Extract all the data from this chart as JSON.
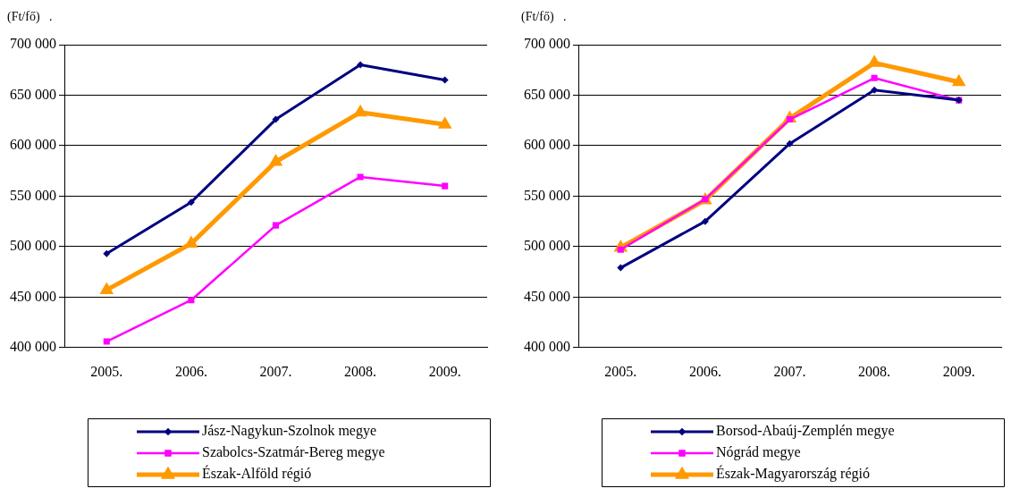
{
  "chart_data": [
    {
      "type": "line",
      "ylabel": "(Ft/fő)   .",
      "categories": [
        "2005.",
        "2006.",
        "2007.",
        "2008.",
        "2009."
      ],
      "ylim": [
        400000,
        700000
      ],
      "yticks": [
        {
          "value": 400000,
          "label": "400 000"
        },
        {
          "value": 450000,
          "label": "450 000"
        },
        {
          "value": 500000,
          "label": "500 000"
        },
        {
          "value": 550000,
          "label": "550 000"
        },
        {
          "value": 600000,
          "label": "600 000"
        },
        {
          "value": 650000,
          "label": "650 000"
        },
        {
          "value": 700000,
          "label": "700 000"
        }
      ],
      "grid": "y",
      "legend": "bottom",
      "series": [
        {
          "name": "Jász-Nagykun-Szolnok megye",
          "color": "#000080",
          "marker": "diamond",
          "values": [
            493000,
            544000,
            626000,
            680000,
            665000
          ]
        },
        {
          "name": "Szabolcs-Szatmár-Bereg megye",
          "color": "#ff00ff",
          "marker": "square",
          "values": [
            406000,
            447000,
            521000,
            569000,
            560000
          ]
        },
        {
          "name": "Észak-Alföld régió",
          "color": "#ff9900",
          "marker": "triangle",
          "values": [
            457000,
            503000,
            584000,
            633000,
            621000
          ]
        }
      ]
    },
    {
      "type": "line",
      "ylabel": "(Ft/fő)   .",
      "categories": [
        "2005.",
        "2006.",
        "2007.",
        "2008.",
        "2009."
      ],
      "ylim": [
        400000,
        700000
      ],
      "yticks": [
        {
          "value": 400000,
          "label": "400 000"
        },
        {
          "value": 450000,
          "label": "450 000"
        },
        {
          "value": 500000,
          "label": "500 000"
        },
        {
          "value": 550000,
          "label": "550 000"
        },
        {
          "value": 600000,
          "label": "600 000"
        },
        {
          "value": 650000,
          "label": "650 000"
        },
        {
          "value": 700000,
          "label": "700 000"
        }
      ],
      "grid": "y",
      "legend": "bottom",
      "series": [
        {
          "name": "Borsod-Abaúj-Zemplén megye",
          "color": "#000080",
          "marker": "diamond",
          "values": [
            479000,
            525000,
            602000,
            655000,
            645000
          ]
        },
        {
          "name": "Nógrád megye",
          "color": "#ff00ff",
          "marker": "square",
          "values": [
            497000,
            547000,
            626000,
            667000,
            645000
          ]
        },
        {
          "name": "Észak-Magyarország régió",
          "color": "#ff9900",
          "marker": "triangle",
          "values": [
            499000,
            546000,
            627000,
            682000,
            663000
          ]
        }
      ]
    }
  ]
}
